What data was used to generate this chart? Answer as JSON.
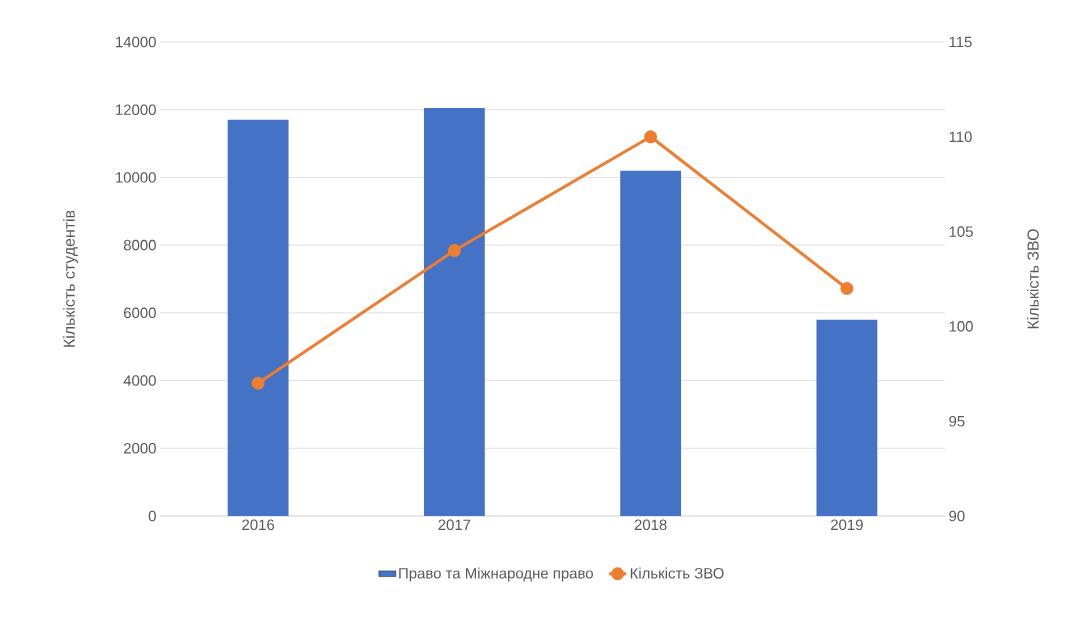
{
  "chart_data": {
    "type": "bar",
    "categories": [
      "2016",
      "2017",
      "2018",
      "2019"
    ],
    "series": [
      {
        "name": "Право та Міжнародне право",
        "color": "#4472c4",
        "values": [
          11700,
          12050,
          10200,
          5800
        ]
      },
      {
        "name": "Кількість ЗВО",
        "type": "line",
        "color": "#ed7d31",
        "axis": "y2",
        "marker": "circle",
        "values": [
          97,
          104,
          110,
          102
        ]
      }
    ],
    "ylabel": "Кількість студентів",
    "y2label": "Кількість ЗВО",
    "ylim": [
      0,
      14000
    ],
    "yticks": [
      0,
      2000,
      4000,
      6000,
      8000,
      10000,
      12000,
      14000
    ],
    "y2lim": [
      90,
      115
    ],
    "y2ticks": [
      90,
      95,
      100,
      105,
      110,
      115
    ],
    "grid": "y",
    "legend": "bottom"
  }
}
